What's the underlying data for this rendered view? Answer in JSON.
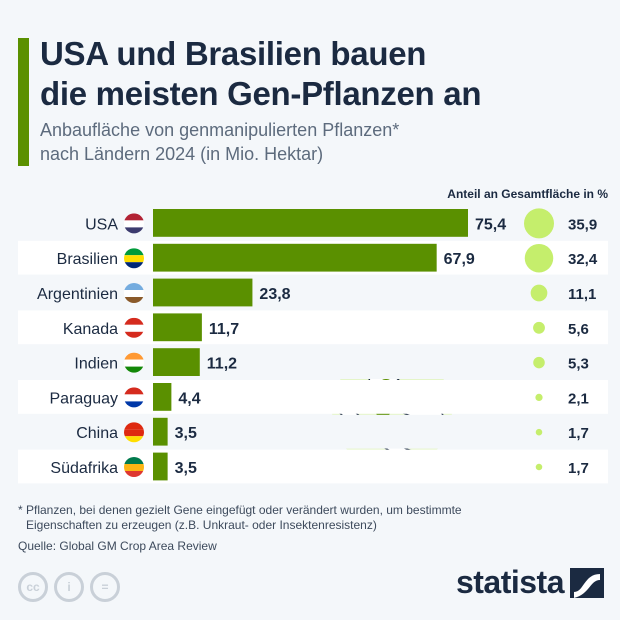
{
  "header": {
    "title_line1": "USA und Brasilien bauen",
    "title_line2": "die meisten Gen-Pflanzen an",
    "subtitle_line1": "Anbaufläche von genmanipulierten Pflanzen*",
    "subtitle_line2": "nach Ländern 2024 (in Mio. Hektar)"
  },
  "chart_data": {
    "type": "bar",
    "orientation": "horizontal",
    "categories": [
      "USA",
      "Brasilien",
      "Argentinien",
      "Kanada",
      "Indien",
      "Paraguay",
      "China",
      "Südafrika"
    ],
    "values": [
      75.4,
      67.9,
      23.8,
      11.7,
      11.2,
      4.4,
      3.5,
      3.5
    ],
    "value_labels": [
      "75,4",
      "67,9",
      "23,8",
      "11,7",
      "11,2",
      "4,4",
      "3,5",
      "3,5"
    ],
    "share_title": "Anteil an Gesamtfläche in %",
    "share_values": [
      35.9,
      32.4,
      11.1,
      5.6,
      5.3,
      2.1,
      1.7,
      1.7
    ],
    "share_labels": [
      "35,9",
      "32,4",
      "11,1",
      "5,6",
      "5,3",
      "2,1",
      "1,7",
      "1,7"
    ],
    "flags": [
      "flag-usa",
      "flag-brazil",
      "flag-argentina",
      "flag-canada",
      "flag-india",
      "flag-paraguay",
      "flag-china",
      "flag-south-africa"
    ],
    "bar_color": "#5a9000",
    "bubble_color": "#c5ee6c"
  },
  "footer": {
    "note_line1": "* Pflanzen, bei denen gezielt Gene eingefügt oder verändert wurden, um bestimmte",
    "note_line2": "Eigenschaften zu erzeugen (z.B. Unkraut- oder Insektenresistenz)",
    "source": "Quelle: Global GM Crop Area Review",
    "cc": "cc",
    "by": "i",
    "nd": "=",
    "brand": "statista"
  }
}
